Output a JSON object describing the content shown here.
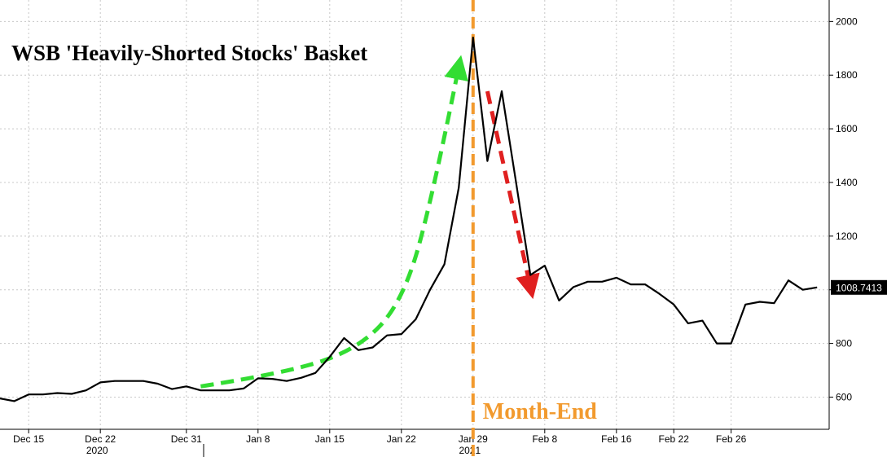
{
  "chart_data": {
    "type": "line",
    "title": "WSB 'Heavily-Shorted Stocks' Basket",
    "xlabel": "",
    "ylabel": "",
    "ylim": [
      480,
      2080
    ],
    "yticks": [
      600,
      800,
      1000,
      1200,
      1400,
      1600,
      1800,
      2000
    ],
    "grid": true,
    "x_ticks": [
      "Dec 15",
      "Dec 22",
      "Dec 31",
      "Jan 8",
      "Jan 15",
      "Jan 22",
      "Jan 29",
      "Feb 8",
      "Feb 16",
      "Feb 22",
      "Feb 26"
    ],
    "x_tick_index": [
      2,
      7,
      13,
      18,
      23,
      28,
      33,
      38,
      43,
      47,
      51
    ],
    "year_labels": [
      {
        "text": "2020",
        "index": 7
      },
      {
        "text": "2021",
        "index": 33
      }
    ],
    "series": [
      {
        "values": [
          595,
          585,
          610,
          610,
          615,
          612,
          625,
          655,
          660,
          660,
          660,
          650,
          630,
          640,
          625,
          625,
          625,
          632,
          670,
          668,
          660,
          672,
          690,
          750,
          820,
          775,
          785,
          830,
          835,
          890,
          1000,
          1095,
          1380,
          1940,
          1480,
          1740,
          1400,
          1055,
          1090,
          960,
          1010,
          1030,
          1030,
          1045,
          1020,
          1020,
          985,
          945,
          875,
          885,
          800,
          800,
          945,
          955,
          950,
          1035,
          1000,
          1008.7413
        ],
        "color": "#000000"
      }
    ],
    "last_value_label": "1008.7413",
    "annotations": [
      {
        "type": "vertical-line",
        "at_index": 33,
        "label": "Month-End",
        "color": "#f29a2e"
      },
      {
        "type": "arrow",
        "description": "uptrend",
        "color": "#33dd33",
        "points": [
          [
            14,
            640
          ],
          [
            20,
            690
          ],
          [
            25,
            780
          ],
          [
            28,
            950
          ],
          [
            30,
            1300
          ],
          [
            32,
            1830
          ]
        ]
      },
      {
        "type": "arrow",
        "description": "downtrend",
        "color": "#e02020",
        "points": [
          [
            34,
            1740
          ],
          [
            37,
            1010
          ]
        ]
      }
    ]
  }
}
